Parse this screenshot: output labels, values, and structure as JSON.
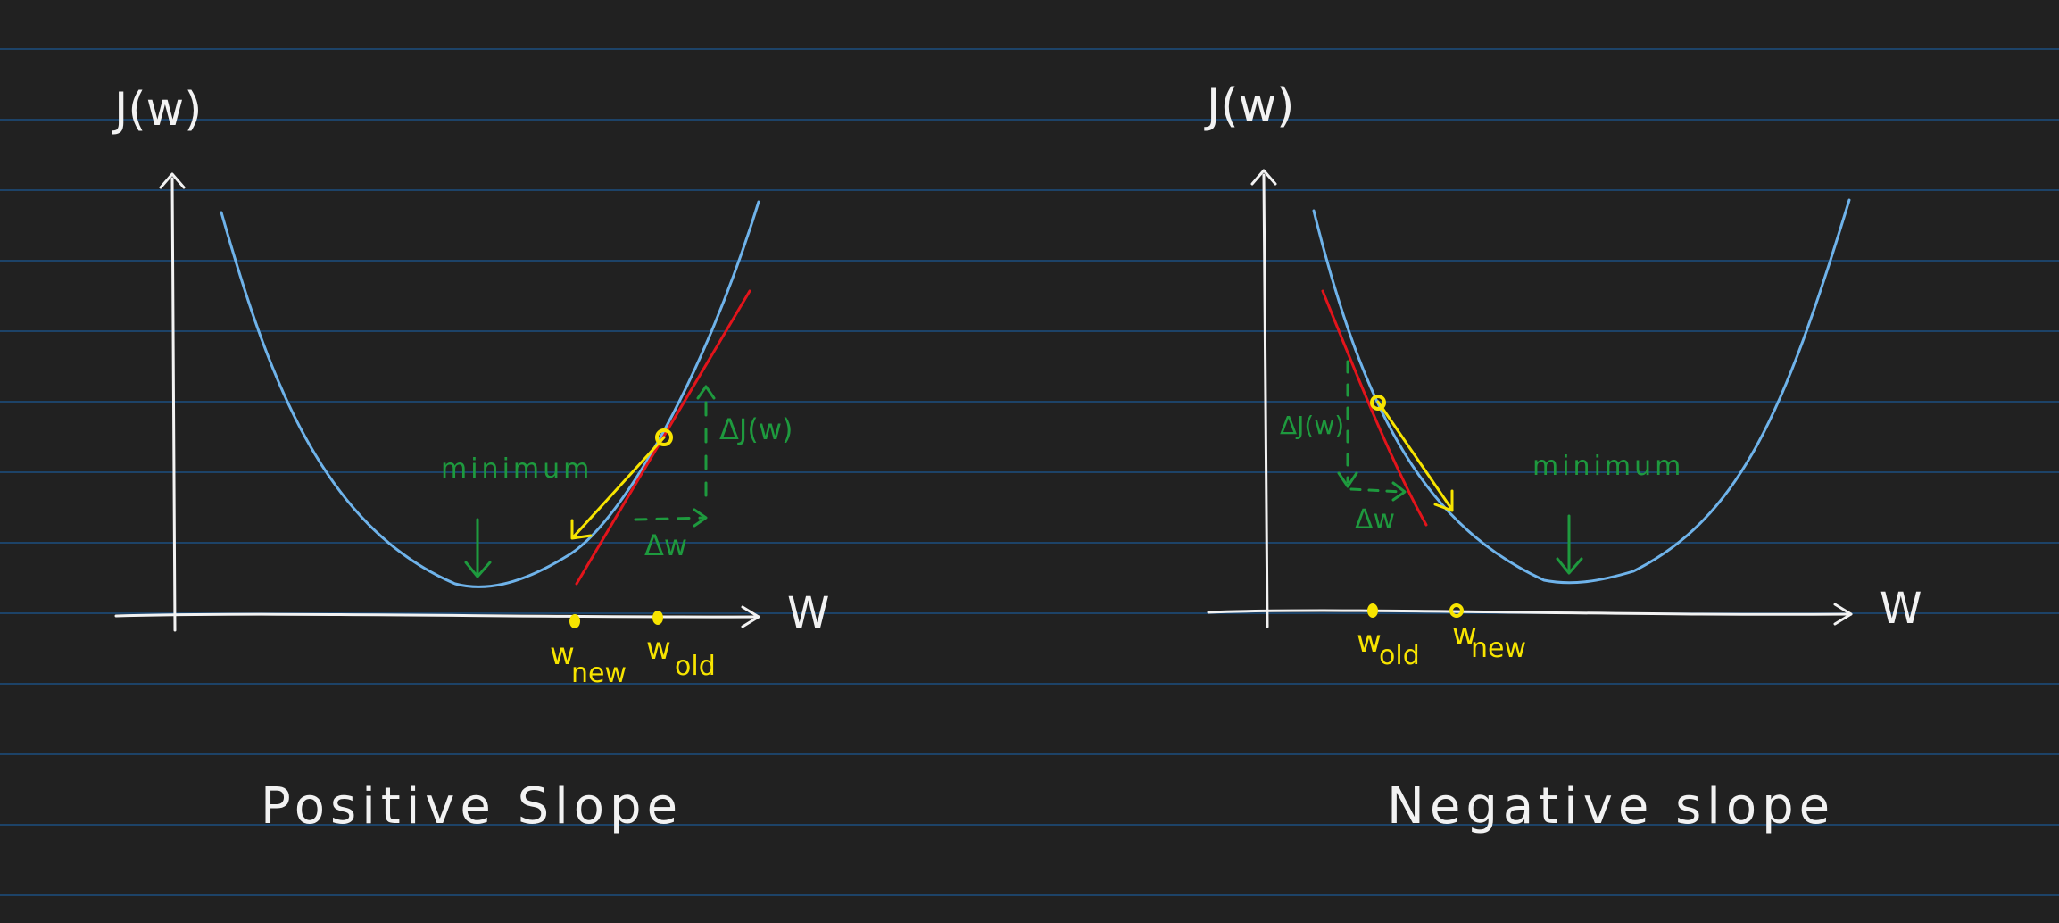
{
  "colors": {
    "background": "#212121",
    "ruled_line": "#1c4f80",
    "axis": "#f2f2f2",
    "curve": "#6fb3ea",
    "tangent": "#e3141b",
    "gradient_arrow": "#f7e400",
    "annotation": "#1e9a3e",
    "points": "#f7e400"
  },
  "left_panel": {
    "y_axis_label": "J(w)",
    "x_axis_label": "W",
    "minimum_label": "minimum",
    "delta_j_label": "ΔJ(w)",
    "delta_w_label": "Δw",
    "w_new": "w",
    "w_new_sub": "new",
    "w_old": "w",
    "w_old_sub": "old",
    "caption": "Positive Slope"
  },
  "right_panel": {
    "y_axis_label": "J(w)",
    "x_axis_label": "W",
    "minimum_label": "minimum",
    "delta_j_label": "ΔJ(w)",
    "delta_w_label": "Δw",
    "w_old": "w",
    "w_old_sub": "old",
    "w_new": "w",
    "w_new_sub": "new",
    "caption": "Negative slope"
  }
}
